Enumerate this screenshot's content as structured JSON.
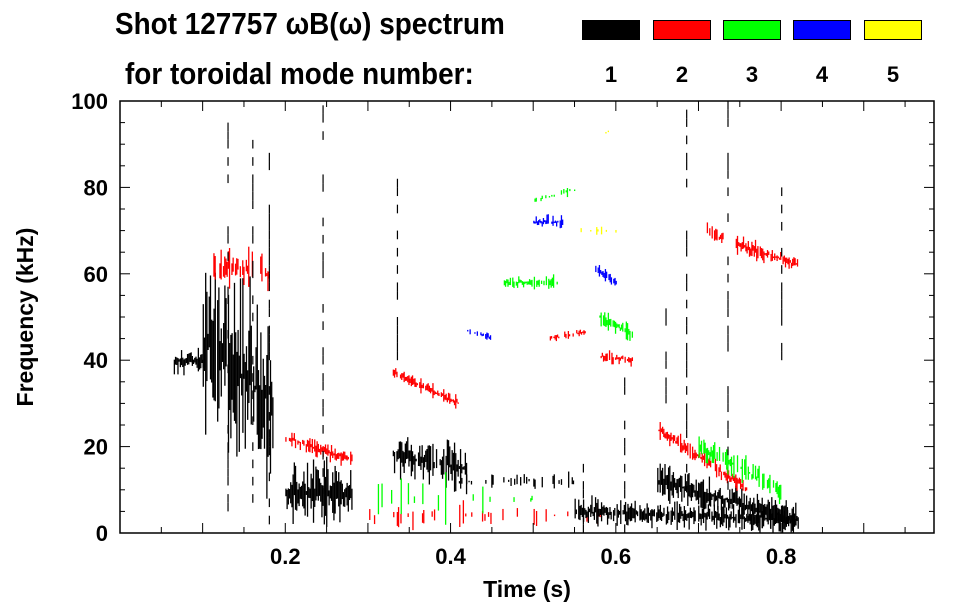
{
  "title": "Shot 127757 ωB(ω) spectrum",
  "subtitle": "for toroidal mode number:",
  "legend": [
    {
      "mode": "1",
      "color": "#000000"
    },
    {
      "mode": "2",
      "color": "#ff0000"
    },
    {
      "mode": "3",
      "color": "#00ff00"
    },
    {
      "mode": "4",
      "color": "#0000ff"
    },
    {
      "mode": "5",
      "color": "#ffff00"
    }
  ],
  "chart_data": {
    "type": "heatmap",
    "title": "Shot 127757 ωB(ω) spectrum",
    "xlabel": "Time (s)",
    "ylabel": "Frequency (kHz)",
    "xlim": [
      0,
      0.985
    ],
    "ylim": [
      0,
      100
    ],
    "xticks": [
      {
        "v": 0.2,
        "label": "0.2"
      },
      {
        "v": 0.4,
        "label": "0.4"
      },
      {
        "v": 0.6,
        "label": "0.6"
      },
      {
        "v": 0.8,
        "label": "0.8"
      }
    ],
    "yticks": [
      {
        "v": 0,
        "label": "0"
      },
      {
        "v": 20,
        "label": "20"
      },
      {
        "v": 40,
        "label": "40"
      },
      {
        "v": 60,
        "label": "60"
      },
      {
        "v": 80,
        "label": "80"
      },
      {
        "v": 100,
        "label": "100"
      }
    ],
    "features": [
      {
        "mode": 1,
        "t": [
          0.065,
          0.1
        ],
        "f": [
          40,
          40
        ],
        "spread": 3,
        "density": 1.0
      },
      {
        "mode": 1,
        "t": [
          0.1,
          0.185
        ],
        "f": [
          45,
          30
        ],
        "spread": 22,
        "density": 0.9
      },
      {
        "mode": 2,
        "t": [
          0.11,
          0.18
        ],
        "f": [
          62,
          60
        ],
        "spread": 5,
        "density": 0.5
      },
      {
        "mode": 1,
        "t": [
          0.2,
          0.28
        ],
        "f": [
          10,
          9
        ],
        "spread": 7,
        "density": 1.0
      },
      {
        "mode": 2,
        "t": [
          0.2,
          0.28
        ],
        "f": [
          22,
          17
        ],
        "spread": 2,
        "density": 0.8
      },
      {
        "mode": 1,
        "t": [
          0.33,
          0.42
        ],
        "f": [
          18,
          15
        ],
        "spread": 5,
        "density": 0.9
      },
      {
        "mode": 2,
        "t": [
          0.33,
          0.41
        ],
        "f": [
          37,
          30
        ],
        "spread": 1.5,
        "density": 0.9
      },
      {
        "mode": 1,
        "t": [
          0.41,
          0.55
        ],
        "f": [
          12,
          12
        ],
        "spread": 2,
        "density": 0.25
      },
      {
        "mode": 2,
        "t": [
          0.3,
          0.6
        ],
        "f": [
          4,
          4
        ],
        "spread": 3,
        "density": 0.2
      },
      {
        "mode": 3,
        "t": [
          0.28,
          0.5
        ],
        "f": [
          8,
          8
        ],
        "spread": 5,
        "density": 0.1
      },
      {
        "mode": 1,
        "t": [
          0.55,
          0.82
        ],
        "f": [
          5,
          3
        ],
        "spread": 3,
        "density": 0.9
      },
      {
        "mode": 1,
        "t": [
          0.65,
          0.82
        ],
        "f": [
          12,
          3
        ],
        "spread": 4,
        "density": 1.0
      },
      {
        "mode": 2,
        "t": [
          0.65,
          0.76
        ],
        "f": [
          24,
          10
        ],
        "spread": 2,
        "density": 0.8
      },
      {
        "mode": 3,
        "t": [
          0.7,
          0.8
        ],
        "f": [
          20,
          10
        ],
        "spread": 3,
        "density": 0.6
      },
      {
        "mode": 2,
        "t": [
          0.71,
          0.73
        ],
        "f": [
          70,
          68
        ],
        "spread": 2,
        "density": 0.8
      },
      {
        "mode": 2,
        "t": [
          0.745,
          0.82
        ],
        "f": [
          67,
          62
        ],
        "spread": 2,
        "density": 0.9
      },
      {
        "mode": 3,
        "t": [
          0.46,
          0.53
        ],
        "f": [
          58,
          58
        ],
        "spread": 1.5,
        "density": 0.7
      },
      {
        "mode": 4,
        "t": [
          0.5,
          0.535
        ],
        "f": [
          72,
          72
        ],
        "spread": 1.5,
        "density": 0.7
      },
      {
        "mode": 3,
        "t": [
          0.58,
          0.62
        ],
        "f": [
          50,
          46
        ],
        "spread": 2,
        "density": 0.8
      },
      {
        "mode": 2,
        "t": [
          0.58,
          0.62
        ],
        "f": [
          41,
          40
        ],
        "spread": 1.5,
        "density": 0.8
      },
      {
        "mode": 4,
        "t": [
          0.575,
          0.6
        ],
        "f": [
          61,
          58
        ],
        "spread": 1.5,
        "density": 0.7
      },
      {
        "mode": 2,
        "t": [
          0.52,
          0.57
        ],
        "f": [
          45,
          47
        ],
        "spread": 1,
        "density": 0.6
      },
      {
        "mode": 3,
        "t": [
          0.5,
          0.56
        ],
        "f": [
          77,
          80
        ],
        "spread": 1,
        "density": 0.4
      },
      {
        "mode": 4,
        "t": [
          0.42,
          0.45
        ],
        "f": [
          47,
          45
        ],
        "spread": 1,
        "density": 0.5
      },
      {
        "mode": 5,
        "t": [
          0.58,
          0.6
        ],
        "f": [
          92,
          94
        ],
        "spread": 1,
        "density": 0.3
      },
      {
        "mode": 5,
        "t": [
          0.55,
          0.6
        ],
        "f": [
          70,
          70
        ],
        "spread": 1,
        "density": 0.2
      }
    ],
    "spikes": [
      {
        "mode": 1,
        "t": 0.13,
        "f": [
          5,
          95
        ]
      },
      {
        "mode": 1,
        "t": 0.16,
        "f": [
          5,
          90
        ]
      },
      {
        "mode": 1,
        "t": 0.18,
        "f": [
          2,
          88
        ]
      },
      {
        "mode": 1,
        "t": 0.245,
        "f": [
          5,
          98
        ]
      },
      {
        "mode": 1,
        "t": 0.335,
        "f": [
          40,
          82
        ]
      },
      {
        "mode": 1,
        "t": 0.56,
        "f": [
          0,
          20
        ]
      },
      {
        "mode": 1,
        "t": 0.61,
        "f": [
          0,
          40
        ]
      },
      {
        "mode": 1,
        "t": 0.685,
        "f": [
          10,
          98
        ]
      },
      {
        "mode": 1,
        "t": 0.735,
        "f": [
          10,
          100
        ]
      },
      {
        "mode": 1,
        "t": 0.66,
        "f": [
          30,
          55
        ]
      },
      {
        "mode": 1,
        "t": 0.8,
        "f": [
          40,
          80
        ]
      }
    ]
  }
}
